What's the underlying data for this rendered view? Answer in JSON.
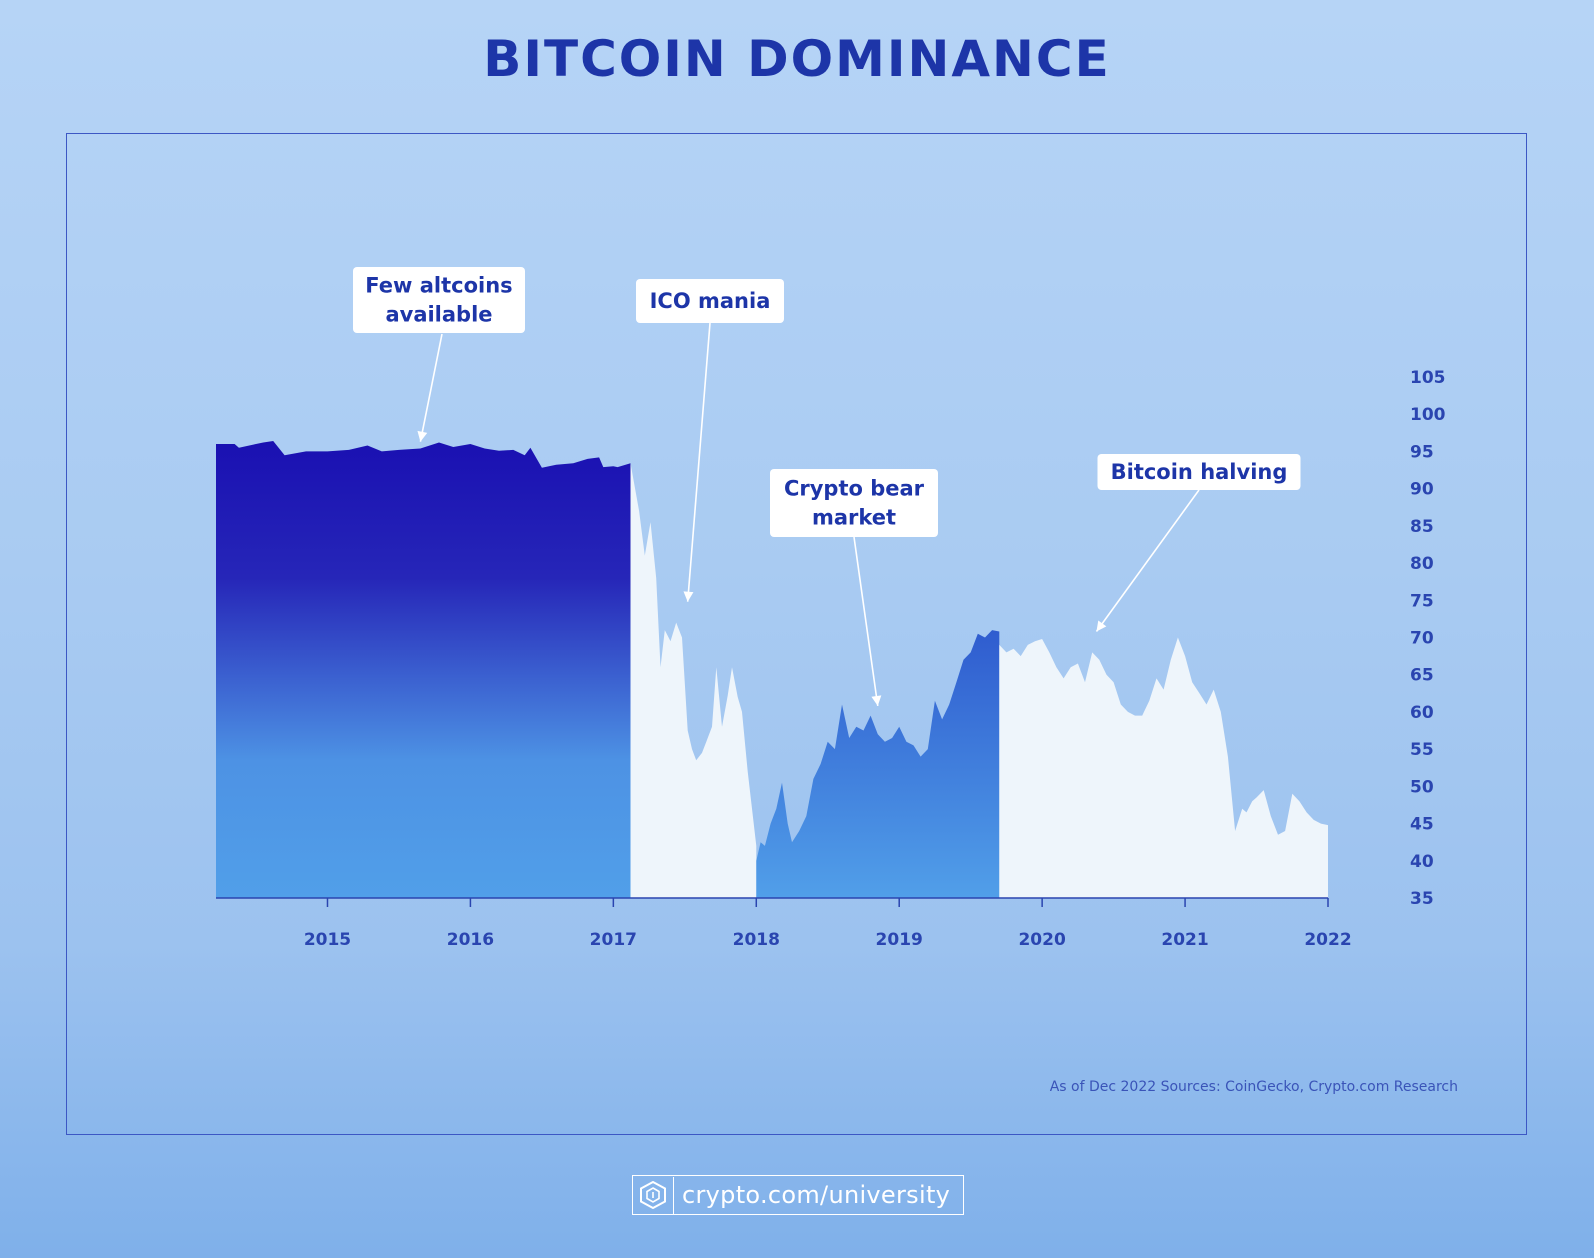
{
  "title": "BITCOIN DOMINANCE",
  "source": "As of Dec 2022 Sources: CoinGecko, Crypto.com Research",
  "footer": {
    "url": "crypto.com/university",
    "logo_icon": "crypto-com-logo-icon"
  },
  "colors": {
    "title": "#1d35a8",
    "axis": "#2a45b0",
    "era1_top": "#1b13b4",
    "era1_bottom": "#4f9be8",
    "ico_fill": "#eef5fb",
    "bear_fill_top": "#3a6fd6",
    "bear_fill_bottom": "#4f9be8",
    "post_fill": "#eef5fb"
  },
  "chart_data": {
    "type": "area",
    "title": "BITCOIN DOMINANCE",
    "xlabel": "",
    "ylabel": "",
    "ylim": [
      35,
      105
    ],
    "xlim": [
      2014.22,
      2022.0
    ],
    "x_ticks": [
      "2015",
      "2016",
      "2017",
      "2018",
      "2019",
      "2020",
      "2021",
      "2022"
    ],
    "y_ticks": [
      "35",
      "40",
      "45",
      "50",
      "55",
      "60",
      "65",
      "70",
      "75",
      "80",
      "85",
      "90",
      "95",
      "100",
      "105"
    ],
    "y_axis_position": "right",
    "grid": false,
    "legend": "none",
    "series": [
      {
        "x": [
          2014.22,
          2014.35,
          2014.38,
          2014.5,
          2014.55,
          2014.62,
          2014.7,
          2014.85,
          2015.0,
          2015.15,
          2015.28,
          2015.38,
          2015.5,
          2015.65,
          2015.78,
          2015.88,
          2016.0,
          2016.1,
          2016.2,
          2016.3,
          2016.38,
          2016.42,
          2016.5,
          2016.55,
          2016.6,
          2016.72,
          2016.82,
          2016.9,
          2016.93,
          2017.0,
          2017.03,
          2017.12
        ],
        "y": [
          96,
          96,
          95.5,
          96,
          96.2,
          96.4,
          94.5,
          95,
          95,
          95.2,
          95.8,
          95,
          95.2,
          95.4,
          96.2,
          95.6,
          96,
          95.4,
          95.1,
          95.2,
          94.5,
          95.5,
          92.8,
          93,
          93.2,
          93.4,
          94,
          94.2,
          92.9,
          93,
          92.9,
          93.4
        ]
      },
      {
        "x": [
          2017.12,
          2017.18,
          2017.22,
          2017.26,
          2017.3,
          2017.33,
          2017.36,
          2017.4,
          2017.44,
          2017.48,
          2017.52,
          2017.55,
          2017.58,
          2017.62,
          2017.65,
          2017.69,
          2017.72,
          2017.76,
          2017.8,
          2017.83,
          2017.87,
          2017.9,
          2017.94,
          2018.0
        ],
        "y": [
          93.4,
          87,
          81,
          85.5,
          78,
          66,
          71,
          69.5,
          72,
          70,
          57.5,
          55,
          53.5,
          54.5,
          56,
          58,
          66,
          58,
          62.2,
          66,
          62,
          60,
          52,
          42
        ]
      },
      {
        "x": [
          2018.0,
          2018.03,
          2018.06,
          2018.1,
          2018.14,
          2018.18,
          2018.22,
          2018.25,
          2018.3,
          2018.35,
          2018.4,
          2018.45,
          2018.5,
          2018.55,
          2018.6,
          2018.65,
          2018.7,
          2018.75,
          2018.8,
          2018.85,
          2018.9,
          2018.95,
          2019.0,
          2019.05,
          2019.1,
          2019.15,
          2019.2,
          2019.25,
          2019.3,
          2019.35,
          2019.4,
          2019.45,
          2019.5,
          2019.55,
          2019.6,
          2019.65,
          2019.7
        ],
        "y": [
          40,
          42.5,
          42,
          45,
          47,
          50.5,
          45,
          42.5,
          44,
          46,
          51,
          53,
          56,
          55,
          61,
          56.5,
          58,
          57.5,
          59.5,
          57,
          56,
          56.5,
          58,
          56,
          55.5,
          54,
          55,
          61.5,
          59,
          61,
          64,
          67,
          68,
          70.5,
          70,
          71,
          70.8
        ]
      },
      {
        "x": [
          2019.7,
          2019.75,
          2019.8,
          2019.85,
          2019.9,
          2019.95,
          2020.0,
          2020.05,
          2020.1,
          2020.15,
          2020.2,
          2020.25,
          2020.3,
          2020.35,
          2020.4,
          2020.45,
          2020.5,
          2020.55,
          2020.6,
          2020.65,
          2020.7,
          2020.75,
          2020.8,
          2020.85,
          2020.9,
          2020.95,
          2021.0,
          2021.05,
          2021.1,
          2021.15,
          2021.2,
          2021.25,
          2021.3,
          2021.35,
          2021.4,
          2021.43,
          2021.47,
          2021.5,
          2021.55,
          2021.6,
          2021.65,
          2021.7,
          2021.75,
          2021.8,
          2021.85,
          2021.9,
          2021.95,
          2022.0
        ],
        "y": [
          69,
          68,
          68.5,
          67.5,
          69,
          69.5,
          69.8,
          68,
          66,
          64.5,
          66,
          66.5,
          64,
          68,
          67,
          65,
          64,
          61,
          60,
          59.5,
          59.5,
          61.5,
          64.5,
          63,
          67,
          70,
          67.5,
          64,
          62.5,
          61,
          63,
          60,
          54,
          44,
          47,
          46.5,
          48,
          48.5,
          49.5,
          46,
          43.5,
          44,
          49,
          48,
          46.5,
          45.5,
          45,
          44.8
        ]
      }
    ],
    "annotations": [
      {
        "text": "Few altcoins available",
        "x": 2015.65,
        "y": 95.5
      },
      {
        "text": "ICO mania",
        "x": 2017.52,
        "y": 74
      },
      {
        "text": "Crypto bear market",
        "x": 2018.85,
        "y": 60
      },
      {
        "text": "Bitcoin halving",
        "x": 2020.38,
        "y": 70
      }
    ]
  }
}
